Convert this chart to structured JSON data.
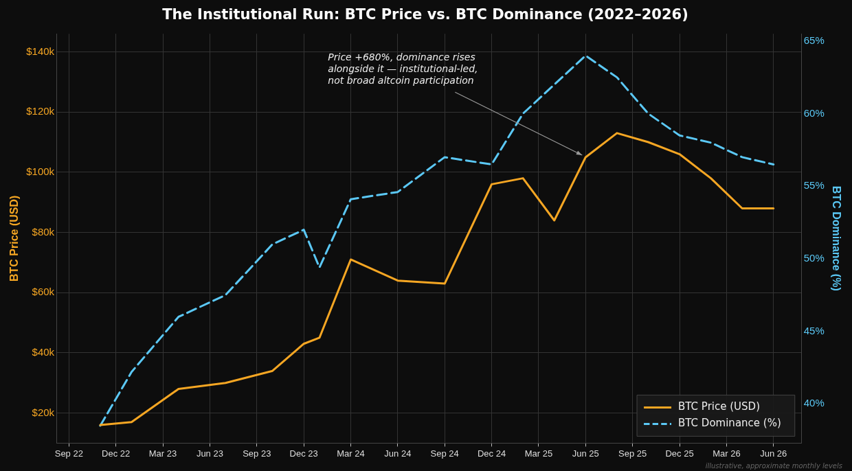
{
  "chart_data": {
    "type": "line",
    "title": "The Institutional Run: BTC Price vs. BTC Dominance (2022–2026)",
    "ylabel": "BTC Price (USD)",
    "y2label": "BTC Dominance (%)",
    "x": [
      "2022-11",
      "2023-01",
      "2023-04",
      "2023-07",
      "2023-10",
      "2023-12",
      "2024-01",
      "2024-03",
      "2024-06",
      "2024-09",
      "2024-12",
      "2025-02",
      "2025-04",
      "2025-06",
      "2025-08",
      "2025-10",
      "2025-12",
      "2026-02",
      "2026-04",
      "2026-06"
    ],
    "series": [
      {
        "name": "BTC Price (USD)",
        "color": "#f5a623",
        "line_style": "solid",
        "values": [
          16000,
          17000,
          28000,
          30000,
          34000,
          43000,
          45000,
          71000,
          64000,
          63000,
          96000,
          98000,
          84000,
          105000,
          113000,
          110000,
          106000,
          98000,
          88000,
          88000
        ]
      },
      {
        "name": "BTC Dominance (%)",
        "color": "#5bc8f5",
        "line_style": "dashed",
        "axis": "y2",
        "values": [
          38.5,
          42.2,
          46.0,
          47.5,
          51.0,
          52.0,
          49.4,
          54.1,
          54.6,
          57.0,
          56.5,
          60.0,
          62.0,
          64.0,
          62.5,
          60.0,
          58.5,
          58.0,
          57.0,
          56.5
        ]
      }
    ],
    "xlim": [
      "2022-08-07",
      "2026-07-25"
    ],
    "xticks": [
      {
        "value": "2022-09",
        "label": "Sep 22"
      },
      {
        "value": "2022-12",
        "label": "Dec 22"
      },
      {
        "value": "2023-03",
        "label": "Mar 23"
      },
      {
        "value": "2023-06",
        "label": "Jun 23"
      },
      {
        "value": "2023-09",
        "label": "Sep 23"
      },
      {
        "value": "2023-12",
        "label": "Dec 23"
      },
      {
        "value": "2024-03",
        "label": "Mar 24"
      },
      {
        "value": "2024-06",
        "label": "Jun 24"
      },
      {
        "value": "2024-09",
        "label": "Sep 24"
      },
      {
        "value": "2024-12",
        "label": "Dec 24"
      },
      {
        "value": "2025-03",
        "label": "Mar 25"
      },
      {
        "value": "2025-06",
        "label": "Jun 25"
      },
      {
        "value": "2025-09",
        "label": "Sep 25"
      },
      {
        "value": "2025-12",
        "label": "Dec 25"
      },
      {
        "value": "2026-03",
        "label": "Mar 26"
      },
      {
        "value": "2026-06",
        "label": "Jun 26"
      }
    ],
    "ylim": [
      10000,
      146000
    ],
    "yticks": [
      {
        "value": 20000,
        "label": "$20k"
      },
      {
        "value": 40000,
        "label": "$40k"
      },
      {
        "value": 60000,
        "label": "$60k"
      },
      {
        "value": 80000,
        "label": "$80k"
      },
      {
        "value": 100000,
        "label": "$100k"
      },
      {
        "value": 120000,
        "label": "$120k"
      },
      {
        "value": 140000,
        "label": "$140k"
      }
    ],
    "y2lim": [
      37.3,
      65.5
    ],
    "y2ticks": [
      {
        "value": 40,
        "label": "40%"
      },
      {
        "value": 45,
        "label": "45%"
      },
      {
        "value": 50,
        "label": "50%"
      },
      {
        "value": 55,
        "label": "55%"
      },
      {
        "value": 60,
        "label": "60%"
      },
      {
        "value": 65,
        "label": "65%"
      }
    ],
    "grid": true,
    "legend": "bottom right",
    "marker": "none",
    "annotations": [
      {
        "text": "Price +680%, dominance rises\nalongside it — institutional-led,\nnot broad altcoin participation",
        "x": "2025-06",
        "y": 105000
      },
      "illustrative, approximate monthly levels"
    ]
  }
}
